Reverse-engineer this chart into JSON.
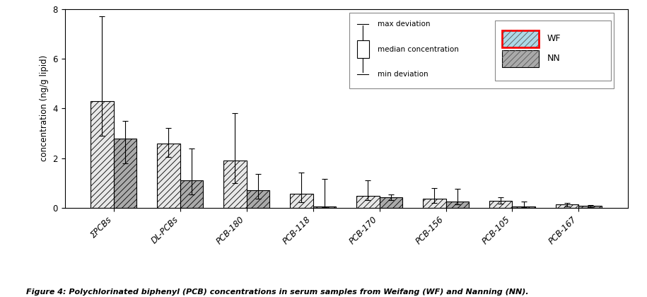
{
  "categories": [
    "ΣPCBs",
    "DL-PCBs",
    "PCB-180",
    "PCB-118",
    "PCB-170",
    "PCB-156",
    "PCB-105",
    "PCB-167"
  ],
  "WF_median": [
    4.3,
    2.6,
    1.9,
    0.58,
    0.48,
    0.38,
    0.28,
    0.13
  ],
  "WF_err_up": [
    3.4,
    0.6,
    1.9,
    0.85,
    0.62,
    0.42,
    0.15,
    0.07
  ],
  "WF_err_down": [
    1.4,
    0.55,
    0.9,
    0.35,
    0.18,
    0.18,
    0.1,
    0.07
  ],
  "NN_median": [
    2.8,
    1.1,
    0.72,
    0.07,
    0.42,
    0.26,
    0.05,
    0.08
  ],
  "NN_err_up": [
    0.7,
    1.3,
    0.65,
    1.1,
    0.12,
    0.52,
    0.22,
    0.04
  ],
  "NN_err_down": [
    1.0,
    0.55,
    0.35,
    0.04,
    0.12,
    0.12,
    0.03,
    0.04
  ],
  "ylabel": "concentration (ng/g lipid)",
  "ylim": [
    0,
    8
  ],
  "yticks": [
    0,
    2,
    4,
    6,
    8
  ],
  "bar_width": 0.35,
  "WF_facecolor": "#e8e8e8",
  "NN_facecolor": "#aaaaaa",
  "WF_label": "WF",
  "NN_label": "NN",
  "legend_texts": [
    "max deviation",
    "median concentration",
    "min deviation"
  ],
  "figure_caption": "Figure 4: Polychlorinated biphenyl (PCB) concentrations in serum samples from Weifang (WF) and Nanning (NN).",
  "background_color": "#ffffff"
}
